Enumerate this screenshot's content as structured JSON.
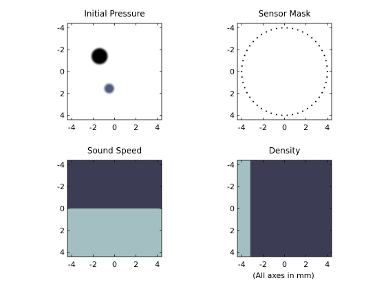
{
  "figure": {
    "note": "(All axes in mm)",
    "colors": {
      "background": "#ffffff",
      "axis": "#000000",
      "dark_fill": "#3c3d55",
      "light_fill": "#a4bfc2"
    }
  },
  "chart_data": [
    {
      "type": "heatmap",
      "title": "Initial Pressure",
      "xlim": [
        -4.4,
        4.4
      ],
      "ylim": [
        -4.4,
        4.4
      ],
      "y_reversed": true,
      "xticks": [
        -4,
        -2,
        0,
        2,
        4
      ],
      "yticks": [
        -4,
        -2,
        0,
        2,
        4
      ],
      "xticklabels": [
        "-4",
        "-2",
        "0",
        "2",
        "4"
      ],
      "yticklabels": [
        "-4",
        "-2",
        "0",
        "2",
        "4"
      ],
      "discs": [
        {
          "cx": -1.4,
          "cy": -1.4,
          "r": 0.75,
          "magnitude": 1.0,
          "color": "#000000"
        },
        {
          "cx": -0.5,
          "cy": 1.55,
          "r": 0.45,
          "magnitude": 0.55,
          "color": "#4f5b7c"
        }
      ]
    },
    {
      "type": "scatter",
      "title": "Sensor Mask",
      "xlim": [
        -4.4,
        4.4
      ],
      "ylim": [
        -4.4,
        4.4
      ],
      "y_reversed": true,
      "xticks": [
        -4,
        -2,
        0,
        2,
        4
      ],
      "yticks": [
        -4,
        -2,
        0,
        2,
        4
      ],
      "xticklabels": [
        "-4",
        "-2",
        "0",
        "2",
        "4"
      ],
      "yticklabels": [
        "-4",
        "-2",
        "0",
        "2",
        "4"
      ],
      "ring": {
        "cx": 0,
        "cy": 0,
        "r": 4.0,
        "points": 50,
        "color": "#000000"
      }
    },
    {
      "type": "heatmap",
      "title": "Sound Speed",
      "xlim": [
        -4.4,
        4.4
      ],
      "ylim": [
        -4.4,
        4.4
      ],
      "y_reversed": true,
      "xticks": [
        -4,
        -2,
        0,
        2,
        4
      ],
      "yticks": [
        -4,
        -2,
        0,
        2,
        4
      ],
      "xticklabels": [
        "-4",
        "-2",
        "0",
        "2",
        "4"
      ],
      "yticklabels": [
        "-4",
        "-2",
        "0",
        "2",
        "4"
      ],
      "regions": [
        {
          "x0": -4.4,
          "x1": 4.4,
          "y0": -4.4,
          "y1": 0.0,
          "color": "#3c3d55"
        },
        {
          "x0": -4.4,
          "x1": 4.4,
          "y0": 0.0,
          "y1": 4.4,
          "color": "#a4bfc2"
        }
      ]
    },
    {
      "type": "heatmap",
      "title": "Density",
      "xlim": [
        -4.4,
        4.4
      ],
      "ylim": [
        -4.4,
        4.4
      ],
      "y_reversed": true,
      "xticks": [
        -4,
        -2,
        0,
        2,
        4
      ],
      "yticks": [
        -4,
        -2,
        0,
        2,
        4
      ],
      "xticklabels": [
        "-4",
        "-2",
        "0",
        "2",
        "4"
      ],
      "yticklabels": [
        "-4",
        "-2",
        "0",
        "2",
        "4"
      ],
      "regions": [
        {
          "x0": -4.4,
          "x1": -3.2,
          "y0": -4.4,
          "y1": 4.4,
          "color": "#a4bfc2"
        },
        {
          "x0": -3.2,
          "x1": 4.4,
          "y0": -4.4,
          "y1": 4.4,
          "color": "#3c3d55"
        }
      ]
    }
  ]
}
